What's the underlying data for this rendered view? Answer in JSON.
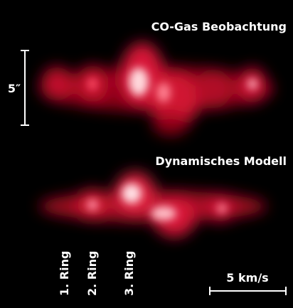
{
  "panels": {
    "observation_title": "CO-Gas Beobachtung",
    "model_title": "Dynamisches Modell"
  },
  "scale_bars": {
    "angular": "5″",
    "velocity": "5 km/s"
  },
  "rings": [
    "1. Ring",
    "2. Ring",
    "3. Ring"
  ]
}
